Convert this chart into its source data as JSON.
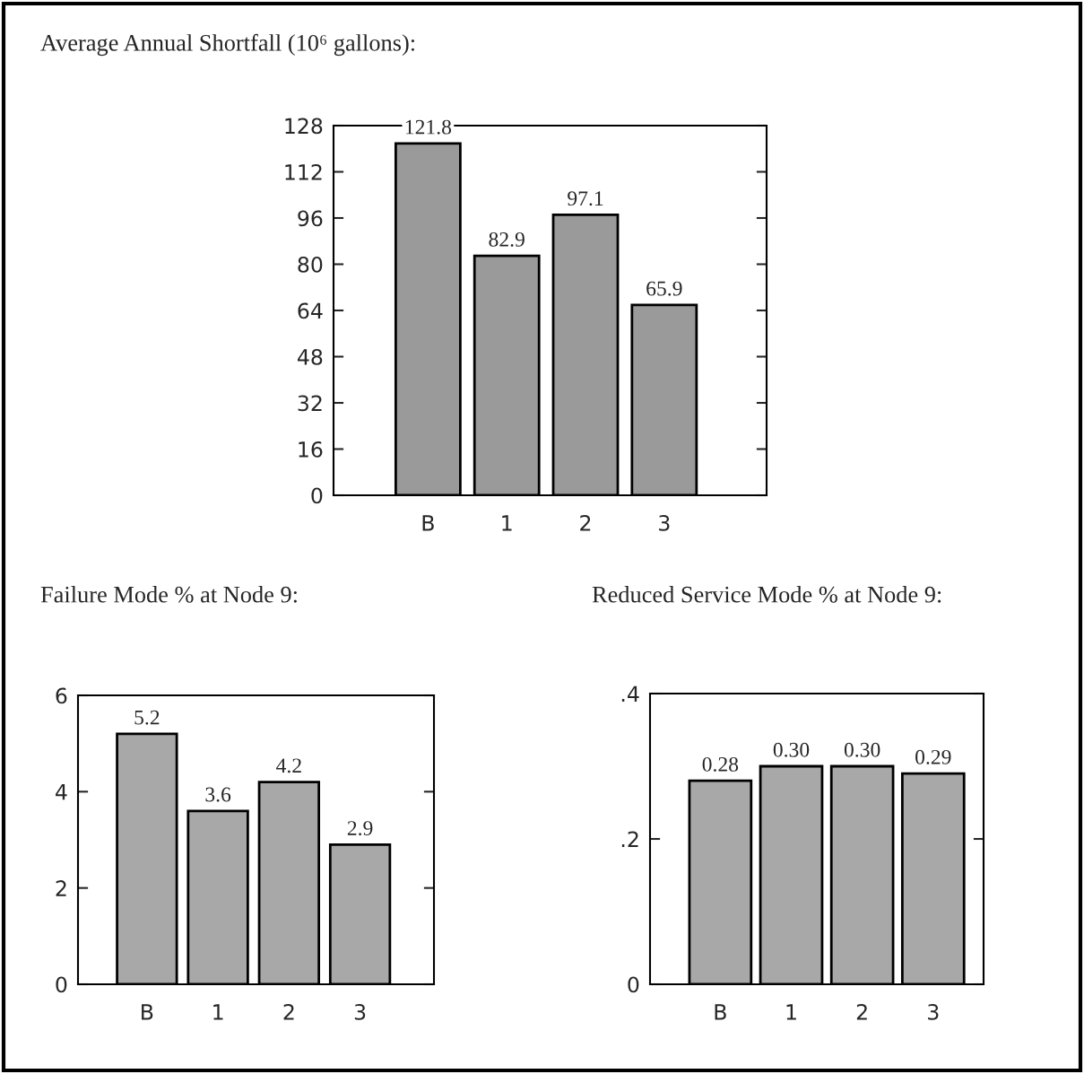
{
  "chart_data": [
    {
      "type": "bar",
      "title": "Average Annual Shortfall (10⁶ gallons):",
      "categories": [
        "B",
        "1",
        "2",
        "3"
      ],
      "values": [
        121.8,
        82.9,
        97.1,
        65.9
      ],
      "value_labels": [
        "121.8",
        "82.9",
        "97.1",
        "65.9"
      ],
      "color": "#9a9a9a",
      "ylim": [
        0,
        128
      ],
      "yticks": [
        0,
        16,
        32,
        48,
        64,
        80,
        96,
        112,
        128
      ]
    },
    {
      "type": "bar",
      "title": "Failure Mode % at Node 9:",
      "categories": [
        "B",
        "1",
        "2",
        "3"
      ],
      "values": [
        5.2,
        3.6,
        4.2,
        2.9
      ],
      "value_labels": [
        "5.2",
        "3.6",
        "4.2",
        "2.9"
      ],
      "color": "#a8a8a8",
      "ylim": [
        0,
        6
      ],
      "yticks": [
        0,
        2,
        4,
        6
      ]
    },
    {
      "type": "bar",
      "title": "Reduced Service Mode % at Node 9:",
      "categories": [
        "B",
        "1",
        "2",
        "3"
      ],
      "values": [
        0.28,
        0.3,
        0.3,
        0.29
      ],
      "value_labels": [
        "0.28",
        "0.30",
        "0.30",
        "0.29"
      ],
      "color": "#a8a8a8",
      "ylim": [
        0,
        0.4
      ],
      "yticks": [
        {
          "value": 0,
          "label": "0"
        },
        {
          "value": 0.2,
          "label": ".2"
        },
        {
          "value": 0.4,
          "label": ".4"
        }
      ]
    }
  ]
}
